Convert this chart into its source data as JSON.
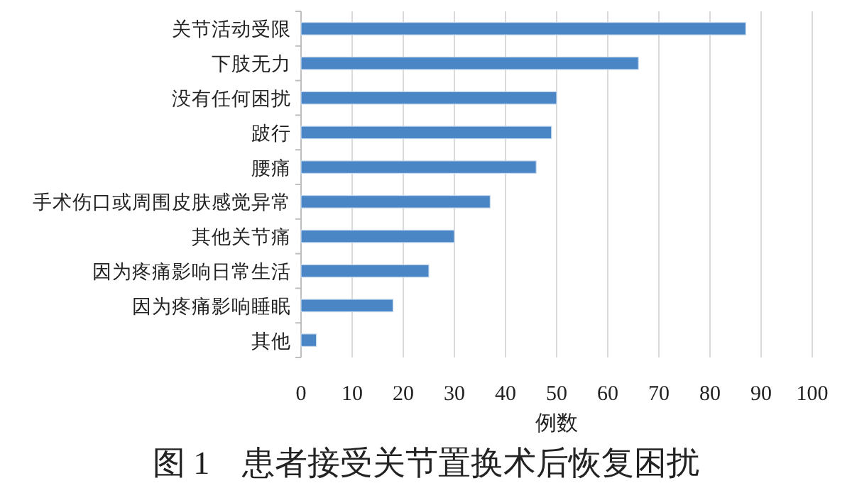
{
  "chart_data": {
    "type": "bar",
    "orientation": "horizontal",
    "title": "图 1　患者接受关节置换术后恢复困扰",
    "xlabel": "例数",
    "categories": [
      "关节活动受限",
      "下肢无力",
      "没有任何困扰",
      "跛行",
      "腰痛",
      "手术伤口或周围皮肤感觉异常",
      "其他关节痛",
      "因为疼痛影响日常生活",
      "因为疼痛影响睡眠",
      "其他"
    ],
    "values": [
      87,
      66,
      50,
      49,
      46,
      37,
      30,
      25,
      18,
      3
    ],
    "color": "#4a86c5",
    "xlim": [
      0,
      100
    ],
    "xticks": [
      0,
      10,
      20,
      30,
      40,
      50,
      60,
      70,
      80,
      90,
      100
    ],
    "grid": "x"
  }
}
